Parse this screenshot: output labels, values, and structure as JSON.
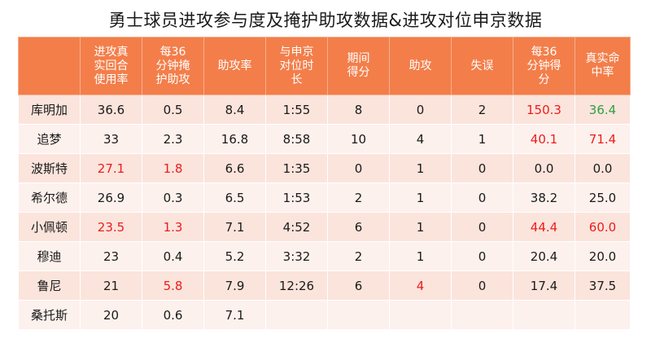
{
  "title": "勇士球员进攻参与度及掩护助攻数据&进攻对位申京数据",
  "colors": {
    "header_bg": "#f37e4a",
    "row_odd": "#fbe4dc",
    "row_even": "#fdf1ed",
    "highlight_red": "#ee1c1c",
    "highlight_green": "#2ea043"
  },
  "chart_data": {
    "type": "table",
    "title": "勇士球员进攻参与度及掩护助攻数据&进攻对位申京数据",
    "columns": [
      "",
      "进攻真实回合使用率",
      "每36分钟掩护助攻",
      "助攻率",
      "与申京对位时长",
      "期间得分",
      "助攻",
      "失误",
      "每36分钟得分",
      "真实命中率"
    ],
    "rows": [
      {
        "cells": [
          "库明加",
          "36.6",
          "0.5",
          "8.4",
          "1:55",
          "8",
          "0",
          "2",
          "150.3",
          "36.4"
        ],
        "highlight": {
          "8": "red",
          "9": "green"
        }
      },
      {
        "cells": [
          "追梦",
          "33",
          "2.3",
          "16.8",
          "8:58",
          "10",
          "4",
          "1",
          "40.1",
          "71.4"
        ],
        "highlight": {
          "8": "red",
          "9": "red"
        }
      },
      {
        "cells": [
          "波斯特",
          "27.1",
          "1.8",
          "6.6",
          "1:35",
          "0",
          "1",
          "0",
          "0.0",
          "0.0"
        ],
        "highlight": {
          "1": "red",
          "2": "red"
        }
      },
      {
        "cells": [
          "希尔德",
          "26.9",
          "0.3",
          "6.5",
          "1:53",
          "2",
          "1",
          "0",
          "38.2",
          "25.0"
        ],
        "highlight": {}
      },
      {
        "cells": [
          "小佩顿",
          "23.5",
          "1.3",
          "7.1",
          "4:52",
          "6",
          "1",
          "0",
          "44.4",
          "60.0"
        ],
        "highlight": {
          "1": "red",
          "2": "red",
          "8": "red",
          "9": "red"
        }
      },
      {
        "cells": [
          "穆迪",
          "23",
          "0.4",
          "5.2",
          "3:32",
          "2",
          "1",
          "0",
          "20.4",
          "20.0"
        ],
        "highlight": {}
      },
      {
        "cells": [
          "鲁尼",
          "21",
          "5.8",
          "7.9",
          "12:26",
          "6",
          "4",
          "0",
          "17.4",
          "37.5"
        ],
        "highlight": {
          "2": "red",
          "6": "red"
        }
      },
      {
        "cells": [
          "桑托斯",
          "20",
          "0.6",
          "7.1",
          "",
          "",
          "",
          "",
          "",
          ""
        ],
        "highlight": {}
      }
    ]
  }
}
